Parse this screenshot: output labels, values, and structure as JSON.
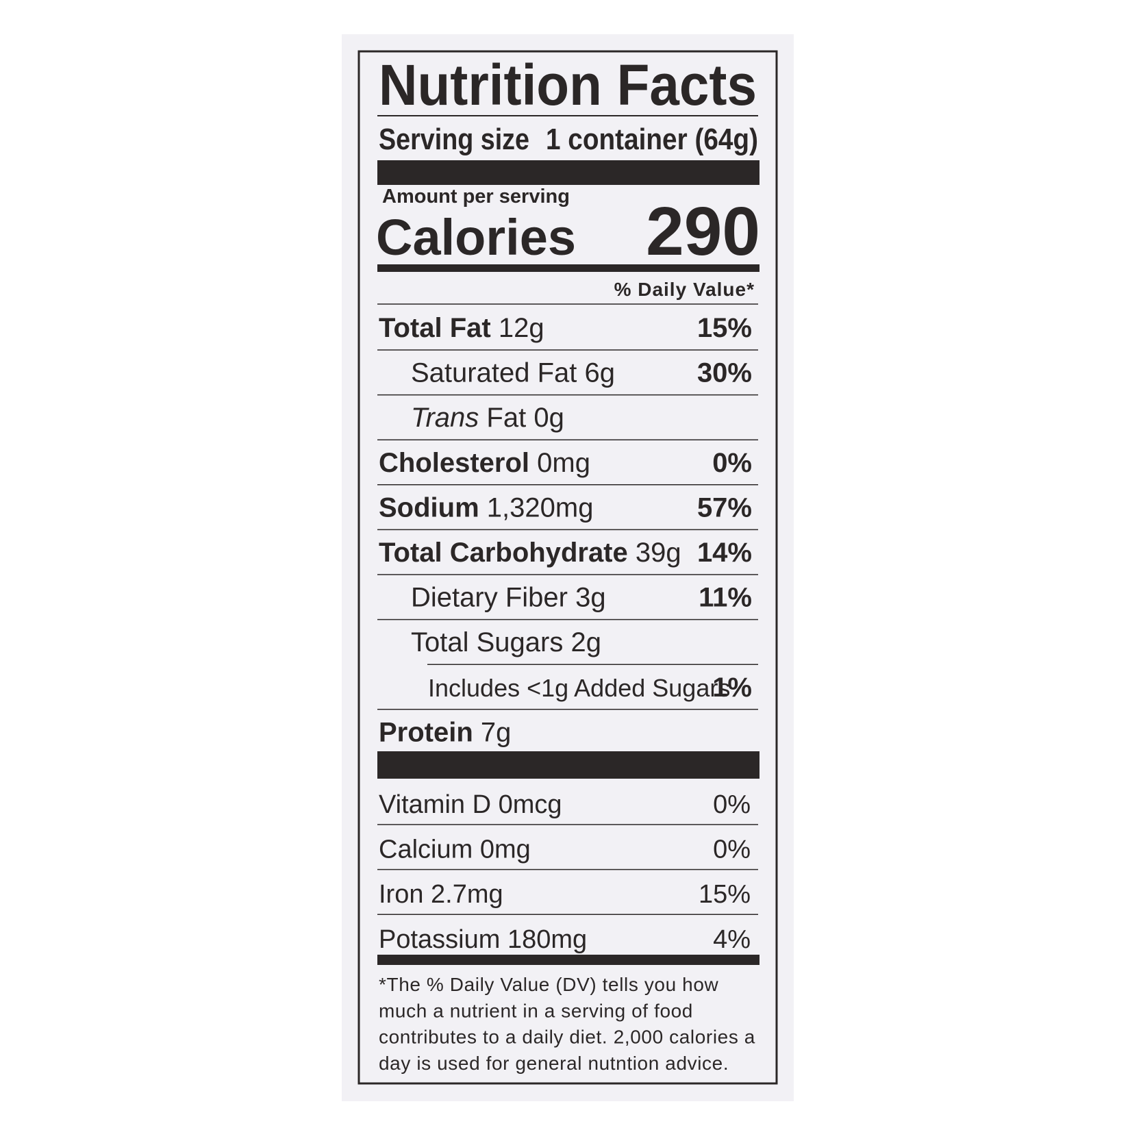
{
  "title": "Nutrition Facts",
  "serving_size": {
    "label": "Serving size",
    "value": "1 container (64g)"
  },
  "amount_per_serving": "Amount per serving",
  "calories": {
    "label": "Calories",
    "value": "290"
  },
  "daily_value_header": "% Daily Value*",
  "nutrients": [
    {
      "name": "Total Fat",
      "amount": "12g",
      "dv": "15%",
      "level": 0
    },
    {
      "name": "Saturated Fat",
      "amount": "6g",
      "dv": "30%",
      "level": 1
    },
    {
      "name_italic": "Trans",
      "name": "Fat",
      "amount": "0g",
      "level": 1
    },
    {
      "name": "Cholesterol",
      "amount": "0mg",
      "dv": "0%",
      "level": 0
    },
    {
      "name": "Sodium",
      "amount": "1,320mg",
      "dv": "57%",
      "level": 0
    },
    {
      "name": "Total Carbohydrate",
      "amount": "39g",
      "dv": "14%",
      "level": 0
    },
    {
      "name": "Dietary Fiber",
      "amount": "3g",
      "dv": "11%",
      "level": 1
    },
    {
      "name": "Total Sugars",
      "amount": "2g",
      "level": 1
    },
    {
      "name": "Includes <1g Added Sugars",
      "dv": "1%",
      "level": 2
    },
    {
      "name": "Protein",
      "amount": "7g",
      "level": 0
    }
  ],
  "vitamins": [
    {
      "name": "Vitamin D",
      "amount": "0mcg",
      "dv": "0%"
    },
    {
      "name": "Calcium",
      "amount": "0mg",
      "dv": "0%"
    },
    {
      "name": "Iron",
      "amount": "2.7mg",
      "dv": "15%"
    },
    {
      "name": "Potassium",
      "amount": "180mg",
      "dv": "4%"
    }
  ],
  "footnote": [
    "*The % Daily Value (DV) tells you how",
    "much a nutrient in a serving of food",
    "contributes to a daily diet. 2,000 calories a",
    "day is used for general nutntion advice."
  ]
}
